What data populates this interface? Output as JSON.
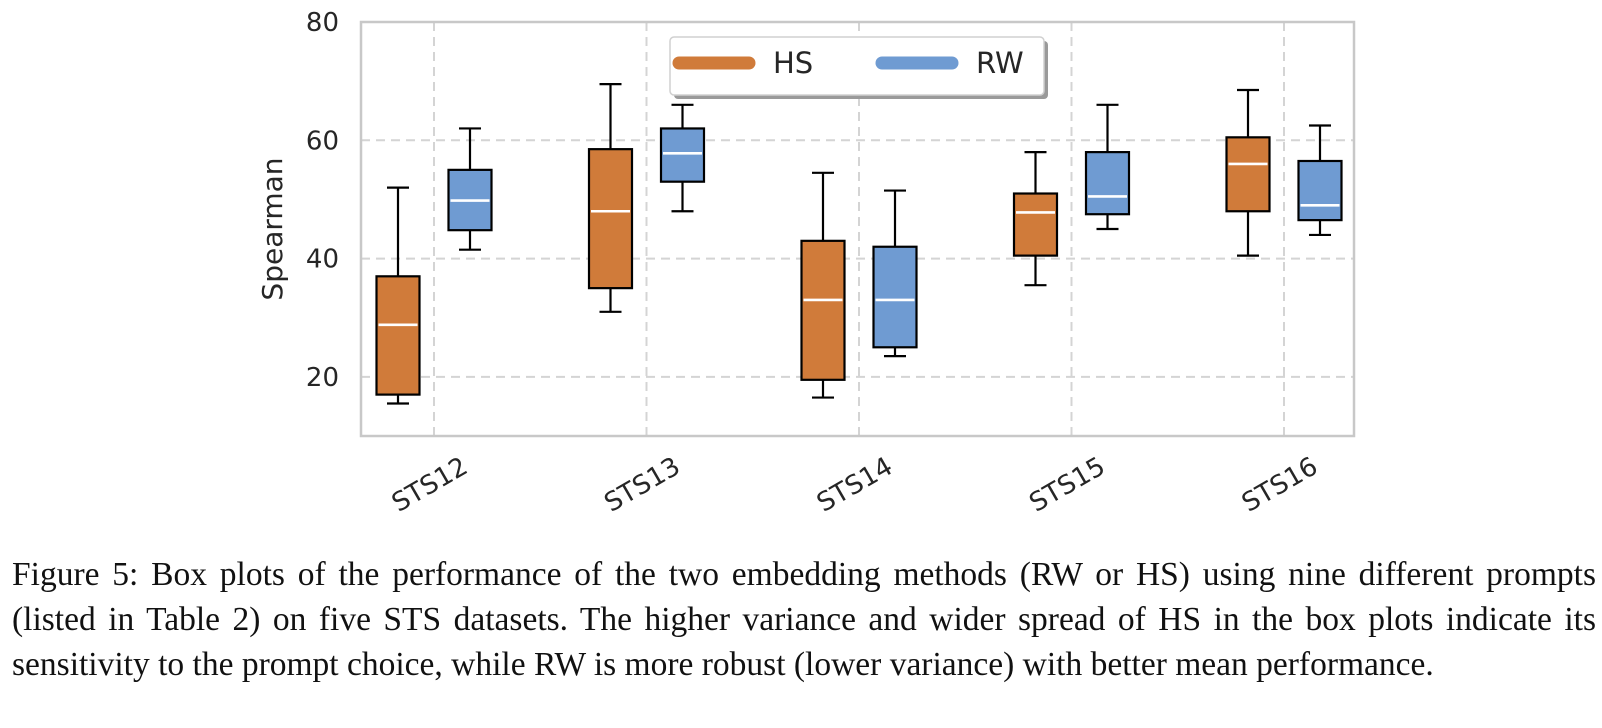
{
  "chart_data": {
    "type": "box",
    "title": "",
    "xlabel": "",
    "ylabel": "Spearman",
    "ylim": [
      10,
      80
    ],
    "yticks": [
      "20",
      "40",
      "60",
      "80"
    ],
    "grid": true,
    "legend_position": "top-center",
    "categories": [
      "STS12",
      "STS13",
      "STS14",
      "STS15",
      "STS16"
    ],
    "series": [
      {
        "name": "HS",
        "color": "#d07b3a",
        "boxes": [
          {
            "whisker_low": 15.5,
            "q1": 17.0,
            "median": 28.8,
            "q3": 37.0,
            "whisker_high": 52.0
          },
          {
            "whisker_low": 31.0,
            "q1": 35.0,
            "median": 48.0,
            "q3": 58.5,
            "whisker_high": 69.5
          },
          {
            "whisker_low": 16.5,
            "q1": 19.5,
            "median": 33.0,
            "q3": 43.0,
            "whisker_high": 54.5
          },
          {
            "whisker_low": 35.5,
            "q1": 40.5,
            "median": 47.8,
            "q3": 51.0,
            "whisker_high": 58.0
          },
          {
            "whisker_low": 40.5,
            "q1": 48.0,
            "median": 56.0,
            "q3": 60.5,
            "whisker_high": 68.5
          }
        ]
      },
      {
        "name": "RW",
        "color": "#6f9bd2",
        "boxes": [
          {
            "whisker_low": 41.5,
            "q1": 44.8,
            "median": 49.8,
            "q3": 55.0,
            "whisker_high": 62.0
          },
          {
            "whisker_low": 48.0,
            "q1": 53.0,
            "median": 57.8,
            "q3": 62.0,
            "whisker_high": 66.0
          },
          {
            "whisker_low": 23.5,
            "q1": 25.0,
            "median": 33.0,
            "q3": 42.0,
            "whisker_high": 51.5
          },
          {
            "whisker_low": 45.0,
            "q1": 47.5,
            "median": 50.5,
            "q3": 58.0,
            "whisker_high": 66.0
          },
          {
            "whisker_low": 44.0,
            "q1": 46.5,
            "median": 49.0,
            "q3": 56.5,
            "whisker_high": 62.5
          }
        ]
      }
    ]
  },
  "caption": "Figure 5: Box plots of the performance of the two embedding methods (RW or HS) using nine different prompts (listed in Table 2) on five STS datasets. The higher variance and wider spread of HS in the box plots indicate its sensitivity to the prompt choice, while RW is more robust (lower variance) with better mean performance."
}
